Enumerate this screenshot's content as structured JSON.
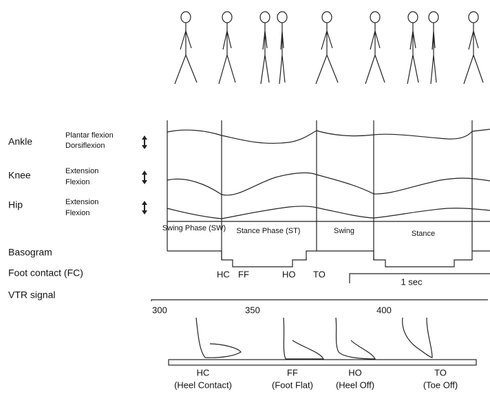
{
  "signals": [
    {
      "name": "Ankle",
      "upper": "Plantar flexion",
      "lower": "Dorsiflexion"
    },
    {
      "name": "Knee",
      "upper": "Extension",
      "lower": "Flexion"
    },
    {
      "name": "Hip",
      "upper": "Extension",
      "lower": "Flexion"
    }
  ],
  "basogram": {
    "label": "Basogram",
    "phases": [
      "Swing Phase (SW)",
      "Stance Phase (ST)",
      "Swing",
      "Stance"
    ]
  },
  "foot_contact": {
    "label": "Foot contact (FC)",
    "events": [
      "HC",
      "FF",
      "HO",
      "TO"
    ],
    "scale": "1 sec"
  },
  "vtr": {
    "label": "VTR signal",
    "ticks": [
      "300",
      "350",
      "400"
    ]
  },
  "foot_positions": [
    {
      "abbr": "HC",
      "name": "(Heel Contact)"
    },
    {
      "abbr": "FF",
      "name": "(Foot Flat)"
    },
    {
      "abbr": "HO",
      "name": "(Heel Off)"
    },
    {
      "abbr": "TO",
      "name": "(Toe Off)"
    }
  ]
}
